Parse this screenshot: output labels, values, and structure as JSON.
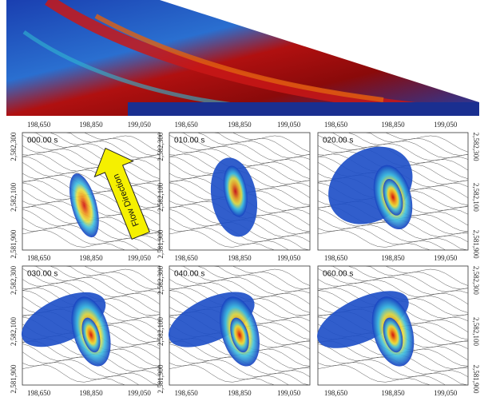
{
  "panels": [
    {
      "time": "000.00 s",
      "x_tick_labels_top": [
        "198,650",
        "198,850",
        "199,050"
      ],
      "x_tick_labels_bottom": [
        "198,650",
        "198,850",
        "199,050"
      ],
      "y_tick_labels": [
        "2,582,300",
        "2,582,100",
        "2,581,900"
      ]
    },
    {
      "time": "010.00 s",
      "x_tick_labels_top": [
        "198,650",
        "198,850",
        "199,050"
      ],
      "x_tick_labels_bottom": [
        "198,650",
        "198,850",
        "199,050"
      ],
      "y_tick_labels": [
        "2,582,300",
        "2,582,100",
        "2,581,900"
      ]
    },
    {
      "time": "020.00 s",
      "x_tick_labels_top": [
        "198,650",
        "198,850",
        "199,050"
      ],
      "x_tick_labels_bottom": [
        "198,650",
        "198,850",
        "199,050"
      ],
      "y_tick_labels": [
        "2,582,300",
        "2,582,100",
        "2,581,900"
      ]
    },
    {
      "time": "030.00 s",
      "x_tick_labels_bottom": [
        "198,650",
        "198,850",
        "199,050"
      ],
      "y_tick_labels": [
        "2,582,300",
        "2,582,100",
        "2,581,900"
      ]
    },
    {
      "time": "040.00 s",
      "x_tick_labels_bottom": [
        "198,650",
        "198,850",
        "199,050"
      ],
      "y_tick_labels": [
        "2,582,300",
        "2,582,100",
        "2,581,900"
      ]
    },
    {
      "time": "060.00 s",
      "x_tick_labels_bottom": [
        "198,650",
        "198,850",
        "199,050"
      ],
      "y_tick_labels": [
        "2,582,300",
        "2,582,100",
        "2,581,900"
      ]
    }
  ],
  "arrow_label": "Flow Direction"
}
